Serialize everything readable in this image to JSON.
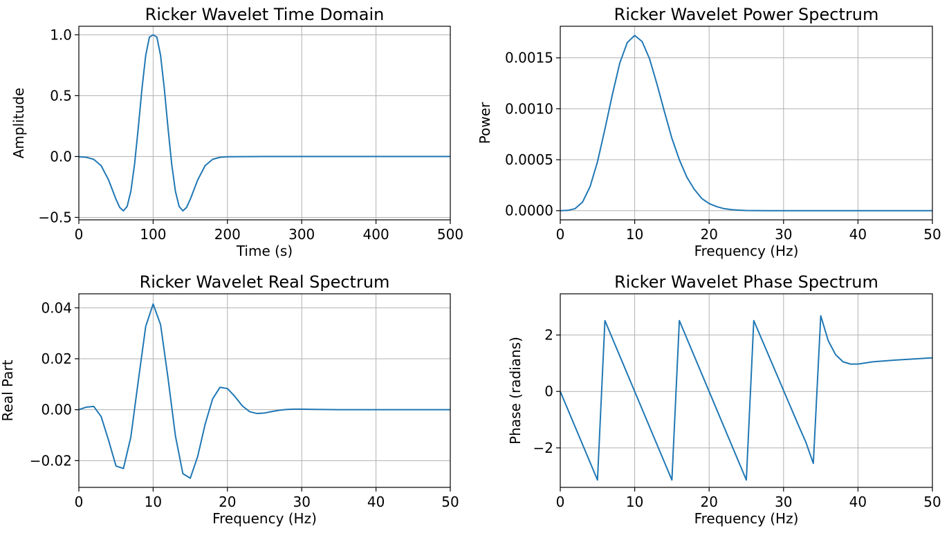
{
  "chart_data": [
    {
      "type": "line",
      "title": "Ricker Wavelet Time Domain",
      "xlabel": "Time (s)",
      "ylabel": "Amplitude",
      "xlim": [
        0,
        500
      ],
      "ylim": [
        -0.52,
        1.07
      ],
      "xticks": [
        0,
        100,
        200,
        300,
        400,
        500
      ],
      "xtick_labels": [
        "0",
        "100",
        "200",
        "300",
        "400",
        "500"
      ],
      "yticks": [
        -0.5,
        0.0,
        0.5,
        1.0
      ],
      "ytick_labels": [
        "−0.5",
        "0.0",
        "0.5",
        "1.0"
      ],
      "grid": true,
      "series": [
        {
          "color": "#1f77b4",
          "x": [
            0,
            10,
            20,
            30,
            40,
            50,
            55,
            60,
            65,
            70,
            75,
            80,
            85,
            90,
            95,
            100,
            105,
            110,
            115,
            120,
            125,
            130,
            135,
            140,
            145,
            150,
            160,
            170,
            180,
            190,
            200,
            250,
            300,
            350,
            400,
            450,
            500
          ],
          "y": [
            -0.002,
            -0.006,
            -0.023,
            -0.075,
            -0.192,
            -0.351,
            -0.418,
            -0.446,
            -0.41,
            -0.286,
            -0.063,
            0.236,
            0.56,
            0.831,
            0.981,
            1.0,
            0.981,
            0.831,
            0.56,
            0.236,
            -0.063,
            -0.286,
            -0.41,
            -0.446,
            -0.418,
            -0.351,
            -0.192,
            -0.075,
            -0.023,
            -0.006,
            -0.002,
            0,
            0,
            0,
            0,
            0,
            0
          ]
        }
      ]
    },
    {
      "type": "line",
      "title": "Ricker Wavelet Power Spectrum",
      "xlabel": "Frequency (Hz)",
      "ylabel": "Power",
      "xlim": [
        0,
        50
      ],
      "ylim": [
        -9e-05,
        0.00181
      ],
      "xticks": [
        0,
        10,
        20,
        30,
        40,
        50
      ],
      "xtick_labels": [
        "0",
        "10",
        "20",
        "30",
        "40",
        "50"
      ],
      "yticks": [
        0.0,
        0.0005,
        0.001,
        0.0015
      ],
      "ytick_labels": [
        "0.0000",
        "0.0005",
        "0.0010",
        "0.0015"
      ],
      "grid": true,
      "series": [
        {
          "color": "#1f77b4",
          "x": [
            0,
            1,
            2,
            3,
            4,
            5,
            6,
            7,
            8,
            9,
            10,
            11,
            12,
            13,
            14,
            15,
            16,
            17,
            18,
            19,
            20,
            21,
            22,
            23,
            24,
            25,
            26,
            28,
            30,
            35,
            40,
            45,
            50
          ],
          "y": [
            0,
            3e-06,
            2e-05,
            8.5e-05,
            0.000235,
            0.00048,
            0.0008,
            0.00114,
            0.00145,
            0.00165,
            0.00172,
            0.00166,
            0.00149,
            0.00124,
            0.00097,
            0.00071,
            0.0005,
            0.00033,
            0.00021,
            0.00012,
            7e-05,
            4e-05,
            2e-05,
            1e-05,
            5e-06,
            2e-06,
            1e-06,
            0,
            0,
            0,
            0,
            0,
            0
          ]
        }
      ]
    },
    {
      "type": "line",
      "title": "Ricker Wavelet Real Spectrum",
      "xlabel": "Frequency (Hz)",
      "ylabel": "Real Part",
      "xlim": [
        0,
        50
      ],
      "ylim": [
        -0.0305,
        0.0455
      ],
      "xticks": [
        0,
        10,
        20,
        30,
        40,
        50
      ],
      "xtick_labels": [
        "0",
        "10",
        "20",
        "30",
        "40",
        "50"
      ],
      "yticks": [
        -0.02,
        0.0,
        0.02,
        0.04
      ],
      "ytick_labels": [
        "−0.02",
        "0.00",
        "0.02",
        "0.04"
      ],
      "grid": true,
      "series": [
        {
          "color": "#1f77b4",
          "x": [
            0,
            1,
            2,
            3,
            4,
            5,
            6,
            7,
            8,
            9,
            10,
            11,
            12,
            13,
            14,
            15,
            16,
            17,
            18,
            19,
            20,
            21,
            22,
            23,
            24,
            25,
            26,
            27,
            28,
            29,
            30,
            32,
            35,
            40,
            45,
            50
          ],
          "y": [
            0,
            0.001,
            0.0013,
            -0.0027,
            -0.012,
            -0.0221,
            -0.0231,
            -0.0107,
            0.0113,
            0.0327,
            0.0415,
            0.0334,
            0.0125,
            -0.0103,
            -0.0251,
            -0.0269,
            -0.0183,
            -0.0057,
            0.0042,
            0.0088,
            0.0083,
            0.0052,
            0.0015,
            -0.0008,
            -0.0015,
            -0.0013,
            -0.0007,
            -0.0002,
            0.0001,
            0.0002,
            0.0002,
            0.0001,
            0,
            0,
            0,
            0
          ]
        }
      ]
    },
    {
      "type": "line",
      "title": "Ricker Wavelet Phase Spectrum",
      "xlabel": "Frequency (Hz)",
      "ylabel": "Phase (radians)",
      "xlim": [
        0,
        50
      ],
      "ylim": [
        -3.4,
        3.46
      ],
      "xticks": [
        0,
        10,
        20,
        30,
        40,
        50
      ],
      "xtick_labels": [
        "0",
        "10",
        "20",
        "30",
        "40",
        "50"
      ],
      "yticks": [
        -2,
        0,
        2
      ],
      "ytick_labels": [
        "−2",
        "0",
        "2"
      ],
      "grid": true,
      "series": [
        {
          "color": "#1f77b4",
          "x": [
            0,
            5,
            6,
            15,
            16,
            25,
            26,
            32,
            33,
            34,
            35,
            36,
            37,
            38,
            39,
            40,
            42,
            45,
            50
          ],
          "y": [
            0,
            -3.14,
            2.51,
            -3.14,
            2.51,
            -3.14,
            2.51,
            -1.2,
            -1.8,
            -2.55,
            2.68,
            1.8,
            1.3,
            1.05,
            0.97,
            0.97,
            1.05,
            1.11,
            1.19
          ]
        }
      ]
    }
  ]
}
